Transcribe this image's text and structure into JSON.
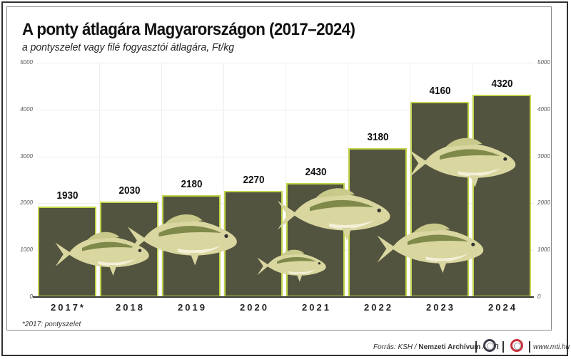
{
  "header": {
    "title": "A ponty átlagára Magyarországon (2017–2024)",
    "subtitle": "a pontyszelet vagy filé fogyasztói átlagára, Ft/kg"
  },
  "axis": {
    "left_ticks": [
      "5000",
      "4000",
      "3000",
      "2000",
      "1000",
      "0"
    ],
    "right_ticks": [
      "5000",
      "4000",
      "3000",
      "2000",
      "1000",
      "0"
    ]
  },
  "bars": [
    {
      "label": "2017*",
      "value": "1930"
    },
    {
      "label": "2018",
      "value": "2030"
    },
    {
      "label": "2019",
      "value": "2180"
    },
    {
      "label": "2020",
      "value": "2270"
    },
    {
      "label": "2021",
      "value": "2430"
    },
    {
      "label": "2022",
      "value": "3180"
    },
    {
      "label": "2023",
      "value": "4160"
    },
    {
      "label": "2024",
      "value": "4320"
    }
  ],
  "footnote": "*2017: pontyszelet",
  "footer": {
    "source_prefix": "Forrás: KSH / ",
    "source_archive": "Nemzeti Archívum",
    "source_sep": " / ",
    "source_mti": "MTI",
    "website": "www.mti.hu",
    "logo1": "MTVA",
    "logo2": "MTI"
  },
  "colors": {
    "bar_fill": "#52543f",
    "bar_border": "#c4d44a",
    "fish": "#d9d6a0"
  },
  "chart_data": {
    "type": "bar",
    "title": "A ponty átlagára Magyarországon (2017–2024)",
    "subtitle": "a pontyszelet vagy filé fogyasztói átlagára, Ft/kg",
    "categories": [
      "2017*",
      "2018",
      "2019",
      "2020",
      "2021",
      "2022",
      "2023",
      "2024"
    ],
    "values": [
      1930,
      2030,
      2180,
      2270,
      2430,
      3180,
      4160,
      4320
    ],
    "xlabel": "",
    "ylabel": "Ft/kg",
    "ylim": [
      0,
      5000
    ],
    "yticks": [
      0,
      1000,
      2000,
      3000,
      4000,
      5000
    ],
    "grid": true,
    "data_labels": true,
    "footnote": "*2017: pontyszelet",
    "source": "Forrás: KSH / Nemzeti Archívum / MTI"
  }
}
